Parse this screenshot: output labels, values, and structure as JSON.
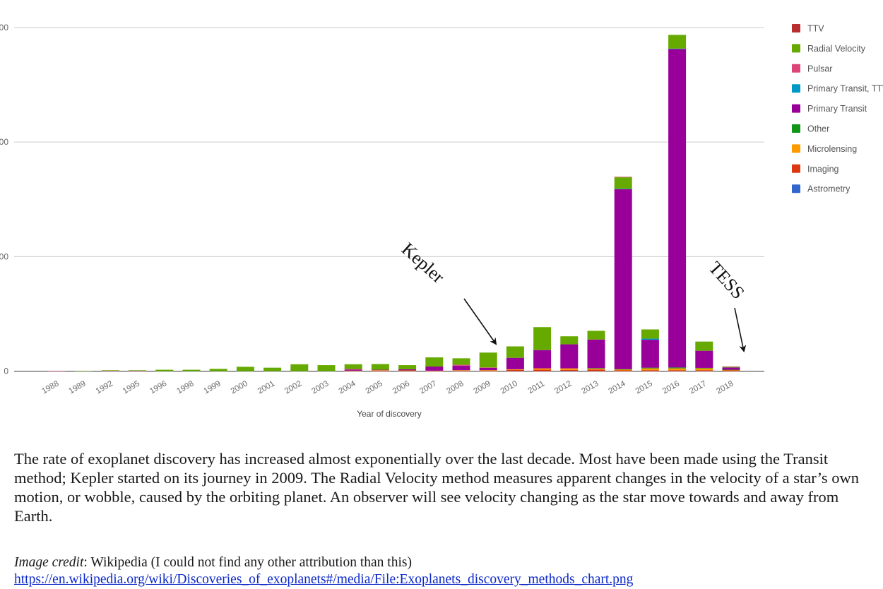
{
  "chart_data": {
    "type": "bar",
    "stacked": true,
    "title": "",
    "xlabel": "Year of discovery",
    "ylabel": "",
    "ylim": [
      0,
      1500
    ],
    "yticks": [
      {
        "value": 0,
        "label": "0"
      },
      {
        "value": 500,
        "label": "00"
      },
      {
        "value": 1000,
        "label": "00"
      },
      {
        "value": 1500,
        "label": "00"
      }
    ],
    "grid": true,
    "legend_position": "right",
    "categories": [
      "1988",
      "1989",
      "1992",
      "1995",
      "1996",
      "1998",
      "1999",
      "2000",
      "2001",
      "2002",
      "2003",
      "2004",
      "2005",
      "2006",
      "2007",
      "2008",
      "2009",
      "2010",
      "2011",
      "2012",
      "2013",
      "2014",
      "2015",
      "2016",
      "2017",
      "2018"
    ],
    "series": [
      {
        "name": "Astrometry",
        "color": "#3366cc",
        "values": [
          0,
          0,
          0,
          0,
          0,
          0,
          0,
          0,
          0,
          0,
          0,
          0,
          0,
          0,
          0,
          0,
          0,
          0,
          0,
          1,
          0,
          0,
          0,
          0,
          0,
          0
        ]
      },
      {
        "name": "Imaging",
        "color": "#dc3912",
        "values": [
          0,
          0,
          0,
          0,
          0,
          0,
          0,
          0,
          0,
          0,
          0,
          1,
          2,
          1,
          1,
          2,
          1,
          5,
          6,
          4,
          7,
          3,
          4,
          4,
          4,
          3
        ]
      },
      {
        "name": "Microlensing",
        "color": "#ff9900",
        "values": [
          0,
          0,
          0,
          0,
          0,
          0,
          0,
          0,
          0,
          0,
          0,
          1,
          2,
          2,
          1,
          2,
          3,
          3,
          6,
          7,
          4,
          4,
          8,
          8,
          8,
          2
        ]
      },
      {
        "name": "Other",
        "color": "#109618",
        "values": [
          0,
          0,
          0,
          0,
          0,
          0,
          0,
          0,
          0,
          0,
          0,
          0,
          0,
          0,
          0,
          0,
          0,
          0,
          0,
          0,
          2,
          2,
          3,
          4,
          2,
          1
        ]
      },
      {
        "name": "Primary Transit",
        "color": "#990099",
        "values": [
          0,
          0,
          0,
          0,
          0,
          0,
          0,
          0,
          0,
          0,
          0,
          5,
          2,
          5,
          18,
          20,
          10,
          50,
          80,
          105,
          125,
          785,
          122,
          1390,
          75,
          10
        ]
      },
      {
        "name": "Primary Transit, TTV",
        "color": "#0099c6",
        "values": [
          0,
          0,
          0,
          0,
          0,
          0,
          0,
          0,
          0,
          0,
          0,
          0,
          0,
          0,
          0,
          0,
          0,
          0,
          0,
          0,
          0,
          2,
          5,
          2,
          0,
          0
        ]
      },
      {
        "name": "Pulsar",
        "color": "#dd4477",
        "values": [
          1,
          0,
          2,
          2,
          0,
          0,
          0,
          0,
          0,
          0,
          0,
          2,
          0,
          0,
          0,
          4,
          2,
          0,
          0,
          0,
          0,
          0,
          0,
          0,
          0,
          0
        ]
      },
      {
        "name": "Radial Velocity",
        "color": "#66aa00",
        "values": [
          0,
          1,
          2,
          2,
          6,
          6,
          10,
          19,
          15,
          30,
          26,
          21,
          25,
          18,
          40,
          28,
          65,
          50,
          100,
          35,
          38,
          50,
          40,
          60,
          40,
          3
        ]
      },
      {
        "name": "TTV",
        "color": "#b82e2e",
        "values": [
          0,
          0,
          0,
          0,
          0,
          0,
          0,
          0,
          0,
          0,
          0,
          0,
          0,
          0,
          0,
          0,
          0,
          0,
          0,
          0,
          0,
          2,
          0,
          0,
          0,
          1
        ]
      }
    ],
    "annotations": [
      {
        "text": "Kepler",
        "target": "2009"
      },
      {
        "text": "TESS",
        "target": "2018"
      }
    ]
  },
  "legend_order": [
    "TTV",
    "Radial Velocity",
    "Pulsar",
    "Primary Transit, TTV",
    "Primary Transit",
    "Other",
    "Microlensing",
    "Imaging",
    "Astrometry"
  ],
  "caption": "The rate of exoplanet discovery has increased almost exponentially over the last decade. Most have been made using the Transit method; Kepler started on its journey in 2009. The Radial Velocity method measures apparent changes in the velocity of a star’s own motion, or wobble, caused by the orbiting planet. An observer will see velocity changing as the star move towards and away from Earth.",
  "credit": {
    "label": "Image credit",
    "separator": ":",
    "text": " Wikipedia (I could not find any other attribution than this)",
    "link": "https://en.wikipedia.org/wiki/Discoveries_of_exoplanets#/media/File:Exoplanets_discovery_methods_chart.png"
  }
}
